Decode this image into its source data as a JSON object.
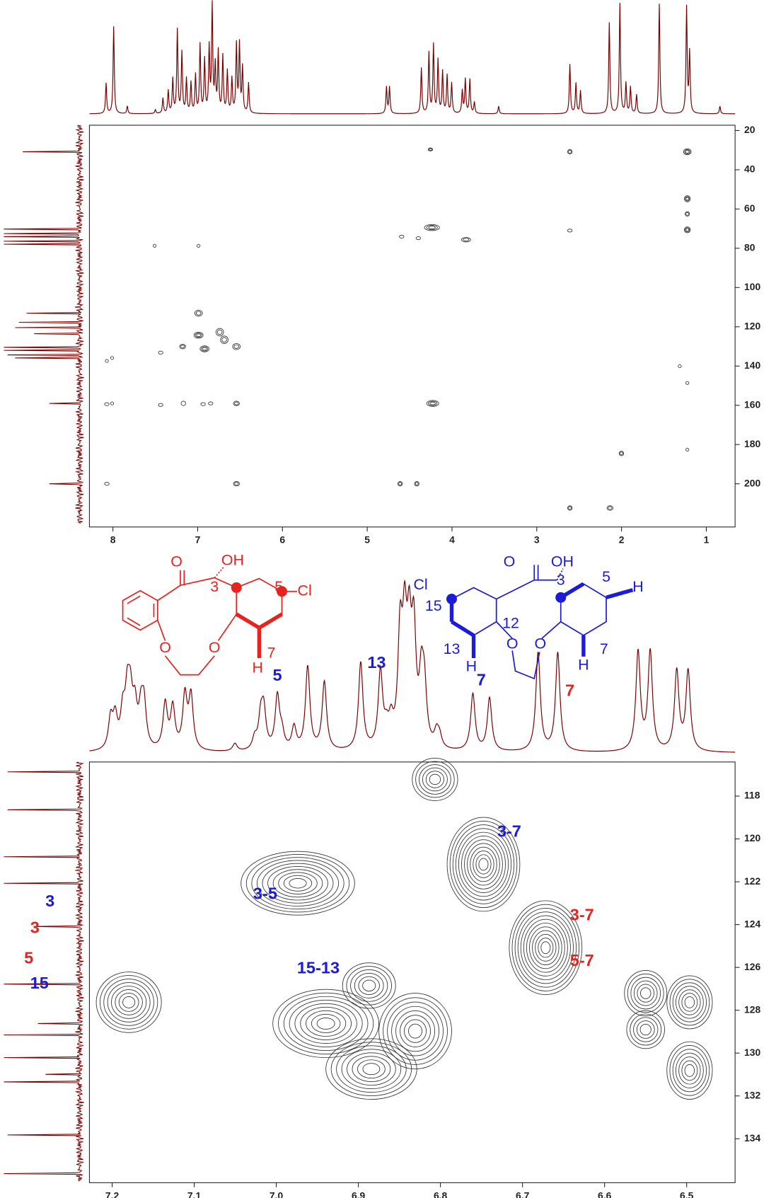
{
  "top_panel": {
    "xticks": [
      8,
      7,
      6,
      5,
      4,
      3,
      2,
      1
    ],
    "yticks": [
      20,
      40,
      60,
      80,
      100,
      120,
      140,
      160,
      180,
      200
    ]
  },
  "bottom_panel": {
    "xticks": [
      7.2,
      7.1,
      {
        "value": 7,
        "label": "7.0"
      },
      6.9,
      6.8,
      6.7,
      6.6,
      6.5
    ],
    "yticks": [
      118,
      120,
      122,
      124,
      126,
      128,
      130,
      132,
      134
    ]
  },
  "red_structure": {
    "color": "#e8231f",
    "labels": [
      "O",
      "OH",
      "3",
      "5",
      "Cl",
      "O",
      "O",
      "H",
      "7"
    ]
  },
  "blue_structure": {
    "color": "#1b1bd8",
    "labels": [
      "O",
      "OH",
      "3",
      "5",
      "H",
      "Cl",
      "15",
      "12",
      "13",
      "H",
      "O",
      "O",
      "H",
      "7"
    ]
  },
  "spectrum_annotations": [
    {
      "text": "5",
      "color": "#1b1bd8"
    },
    {
      "text": "13",
      "color": "#1b1bd8"
    },
    {
      "text": "7",
      "color": "#1b1bd8"
    },
    {
      "text": "7",
      "color": "#e8231f"
    }
  ],
  "carbon_annotations": [
    {
      "text": "3",
      "color": "#1b1bd8"
    },
    {
      "text": "3",
      "color": "#e8231f"
    },
    {
      "text": "5",
      "color": "#e8231f"
    },
    {
      "text": "15",
      "color": "#1b1bd8"
    }
  ],
  "cross_peak_labels": [
    {
      "text": "3-5",
      "color": "#1b1bd8"
    },
    {
      "text": "3-7",
      "color": "#1b1bd8"
    },
    {
      "text": "15-13",
      "color": "#1b1bd8"
    },
    {
      "text": "3-7",
      "color": "#e8231f"
    },
    {
      "text": "5-7",
      "color": "#e8231f"
    }
  ]
}
